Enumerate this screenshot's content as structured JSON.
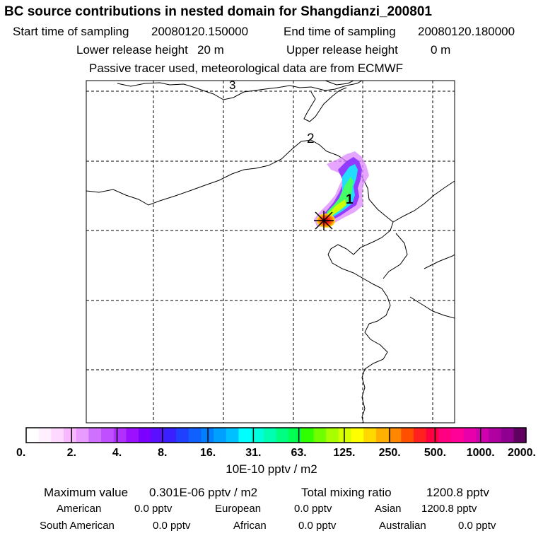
{
  "header": {
    "title": "BC  source contributions in nested domain for Shangdianzi_200801",
    "start_label": "Start time of sampling",
    "start_value": "20080120.150000",
    "end_label": "End time of sampling",
    "end_value": "20080120.180000",
    "lower_label": "Lower release height",
    "lower_value": "20 m",
    "upper_label": "Upper release height",
    "upper_value": "0 m",
    "note": "Passive tracer used, meteorological data are from ECMWF"
  },
  "map": {
    "trajectory_labels": [
      "1",
      "2",
      "3"
    ],
    "receptor_marker": "x-mark-icon",
    "colors": {
      "coast": "#000000",
      "grid": "#000000",
      "plume_outer": "#cc33ff",
      "plume_mid": "#33ffff",
      "plume_inner": "#33ff66",
      "plume_core": "#ff3333"
    }
  },
  "colorbar": {
    "colors": [
      "#ffffff",
      "#fff0ff",
      "#ffd8ff",
      "#f8b8ff",
      "#e89cff",
      "#d070ff",
      "#c050ff",
      "#b030ff",
      "#9a10ff",
      "#7a00ff",
      "#5a10ff",
      "#3a20ff",
      "#2040ff",
      "#1060ff",
      "#0080ff",
      "#00a0ff",
      "#00c0ff",
      "#00ffff",
      "#00ffdd",
      "#00ffb0",
      "#00ff80",
      "#00ff50",
      "#30ff00",
      "#70ff00",
      "#a8ff00",
      "#d8ff00",
      "#ffff00",
      "#ffd800",
      "#ffb000",
      "#ff8800",
      "#ff5000",
      "#ff2020",
      "#ff0040",
      "#ff0080",
      "#ff0099",
      "#e800aa",
      "#d000b0",
      "#b000a0",
      "#900090",
      "#600060"
    ],
    "ticks": [
      "0.",
      "2.",
      "4.",
      "8.",
      "16.",
      "31.",
      "63.",
      "125.",
      "250.",
      "500.",
      "1000.",
      "2000."
    ],
    "units": "10E-10 pptv / m2"
  },
  "stats": {
    "max_label": "Maximum value",
    "max_value": "0.301E-06 pptv / m2",
    "total_label": "Total mixing ratio",
    "total_value": "1200.8 pptv",
    "regions": [
      {
        "name": "American",
        "value": "0.0 pptv"
      },
      {
        "name": "European",
        "value": "0.0 pptv"
      },
      {
        "name": "Asian",
        "value": "1200.8 pptv"
      },
      {
        "name": "South American",
        "value": "0.0 pptv"
      },
      {
        "name": "African",
        "value": "0.0 pptv"
      },
      {
        "name": "Australian",
        "value": "0.0 pptv"
      }
    ]
  }
}
